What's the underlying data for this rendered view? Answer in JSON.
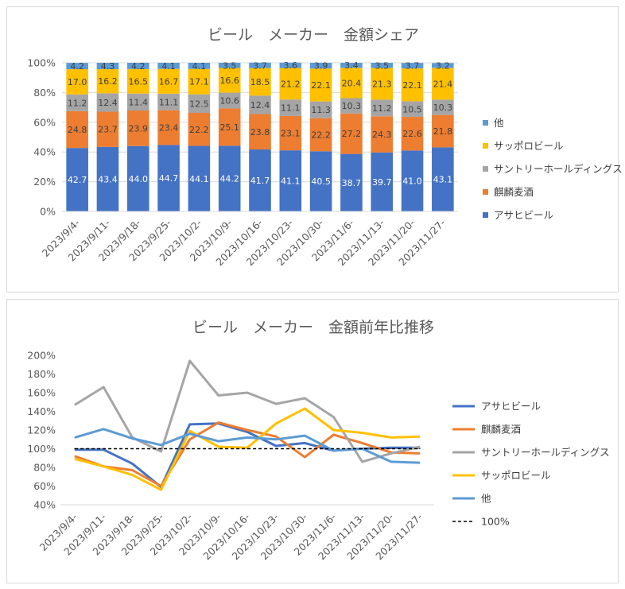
{
  "chart_data": [
    {
      "type": "bar",
      "stacked": true,
      "title": "ビール　メーカー　金額シェア",
      "categories": [
        "2023/9/4-",
        "2023/9/11-",
        "2023/9/18-",
        "2023/9/25-",
        "2023/10/2-",
        "2023/10/9-",
        "2023/10/16-",
        "2023/10/23-",
        "2023/10/30-",
        "2023/11/6-",
        "2023/11/13-",
        "2023/11/20-",
        "2023/11/27-"
      ],
      "ylim": [
        0,
        100
      ],
      "yticks": [
        "0%",
        "20%",
        "40%",
        "60%",
        "80%",
        "100%"
      ],
      "grid": true,
      "legend_position": "right",
      "series": [
        {
          "name": "アサヒビール",
          "color": "#4472c4",
          "labelColor": "#ffffff",
          "values": [
            42.7,
            43.4,
            44.0,
            44.7,
            44.1,
            44.2,
            41.7,
            41.1,
            40.5,
            38.7,
            39.7,
            41.0,
            43.1
          ],
          "labels": [
            "42.7",
            "43.4",
            "44.0",
            "44.7",
            "44.1",
            "44.2",
            "41.7",
            "41.1",
            "40.5",
            "38.7",
            "39.7",
            "41.0",
            "43.1"
          ]
        },
        {
          "name": "麒麟麦酒",
          "color": "#ed7d31",
          "labelColor": "#404040",
          "values": [
            24.8,
            23.7,
            23.9,
            23.4,
            22.2,
            25.1,
            23.8,
            23.1,
            22.2,
            27.2,
            24.3,
            22.6,
            21.8
          ],
          "labels": [
            "24.8",
            "23.7",
            "23.9",
            "23.4",
            "22.2",
            "25.1",
            "23.8",
            "23.1",
            "22.2",
            "27.2",
            "24.3",
            "22.6",
            "21.8"
          ]
        },
        {
          "name": "サントリーホールディングス",
          "color": "#a5a5a5",
          "labelColor": "#404040",
          "values": [
            11.2,
            12.4,
            11.4,
            11.1,
            12.5,
            10.6,
            12.4,
            11.1,
            11.3,
            10.3,
            11.2,
            10.5,
            10.3
          ],
          "labels": [
            "11.2",
            "12.4",
            "11.4",
            "11.1",
            "12.5",
            "10.6",
            "12.4",
            "11.1",
            "11.3",
            "10.3",
            "11.2",
            "10.5",
            "10.3"
          ]
        },
        {
          "name": "サッポロビール",
          "color": "#ffc000",
          "labelColor": "#404040",
          "values": [
            17.0,
            16.2,
            16.5,
            16.7,
            17.1,
            16.6,
            18.5,
            21.2,
            22.1,
            20.4,
            21.3,
            22.1,
            21.4
          ],
          "labels": [
            "17.0",
            "16.2",
            "16.5",
            "16.7",
            "17.1",
            "16.6",
            "18.5",
            "21.2",
            "22.1",
            "20.4",
            "21.3",
            "22.1",
            "21.4"
          ]
        },
        {
          "name": "他",
          "color": "#5b9bd5",
          "labelColor": "#404040",
          "values": [
            4.2,
            4.3,
            4.2,
            4.1,
            4.1,
            3.5,
            3.7,
            3.6,
            3.9,
            3.4,
            3.5,
            3.7,
            3.2
          ],
          "labels": [
            "4.2",
            "4.3",
            "4.2",
            "4.1",
            "4.1",
            "3.5",
            "3.7",
            "3.6",
            "3.9",
            "3.4",
            "3.5",
            "3.7",
            "3.2"
          ]
        }
      ],
      "legend_order": [
        "他",
        "サッポロビール",
        "サントリーホールディングス",
        "麒麟麦酒",
        "アサヒビール"
      ]
    },
    {
      "type": "line",
      "title": "ビール　メーカー　金額前年比推移",
      "categories": [
        "2023/9/4-",
        "2023/9/11-",
        "2023/9/18-",
        "2023/9/25-",
        "2023/10/2-",
        "2023/10/9-",
        "2023/10/16-",
        "2023/10/23-",
        "2023/10/30-",
        "2023/11/6-",
        "2023/11/13-",
        "2023/11/20-",
        "2023/11/27-"
      ],
      "ylim": [
        40,
        200
      ],
      "yticks": [
        "40%",
        "60%",
        "80%",
        "100%",
        "120%",
        "140%",
        "160%",
        "180%",
        "200%"
      ],
      "grid": false,
      "legend_position": "right",
      "series": [
        {
          "name": "アサヒビール",
          "color": "#4472c4",
          "dashed": false,
          "values": [
            99,
            99,
            84,
            59,
            126,
            127,
            118,
            103,
            106,
            98,
            100,
            101,
            101
          ]
        },
        {
          "name": "麒麟麦酒",
          "color": "#ed7d31",
          "dashed": false,
          "values": [
            92,
            81,
            77,
            60,
            110,
            128,
            120,
            113,
            91,
            115,
            106,
            96,
            95
          ]
        },
        {
          "name": "サントリーホールディングス",
          "color": "#a5a5a5",
          "dashed": false,
          "values": [
            147,
            166,
            112,
            97,
            194,
            157,
            160,
            148,
            154,
            134,
            86,
            95,
            102
          ]
        },
        {
          "name": "サッポロビール",
          "color": "#ffc000",
          "dashed": false,
          "values": [
            89,
            81,
            72,
            56,
            119,
            102,
            101,
            127,
            143,
            120,
            117,
            112,
            113
          ]
        },
        {
          "name": "他",
          "color": "#5b9bd5",
          "dashed": false,
          "values": [
            112,
            121,
            111,
            104,
            116,
            108,
            112,
            110,
            114,
            98,
            100,
            86,
            85
          ]
        },
        {
          "name": "100%",
          "color": "#000000",
          "dashed": true,
          "values": [
            100,
            100,
            100,
            100,
            100,
            100,
            100,
            100,
            100,
            100,
            100,
            100,
            100
          ]
        }
      ]
    }
  ]
}
